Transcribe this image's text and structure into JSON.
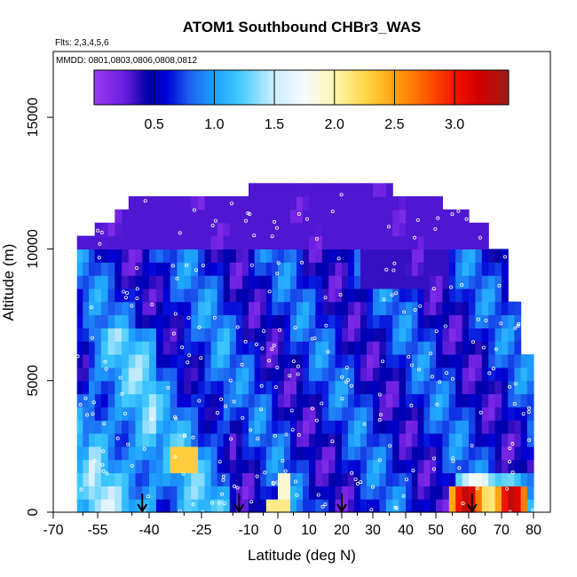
{
  "chart_data": {
    "type": "heatmap",
    "title": "ATOM1 Southbound CHBr3_WAS",
    "subtitle_flights": "Flts: 2,3,4,5,6",
    "subtitle_dates": "MMDD: 0801,0803,0806,0808,0812",
    "xlabel": "Latitude (deg N)",
    "ylabel": "Altitude (m)",
    "xlim": [
      -70,
      85
    ],
    "ylim": [
      0,
      17500
    ],
    "x_ticks": [
      -70,
      -55,
      -40,
      -25,
      -10,
      0,
      10,
      20,
      30,
      40,
      50,
      60,
      70,
      80
    ],
    "x_tick_labels": [
      "-70",
      "-55",
      "-40",
      "-25",
      "-10",
      "0",
      "10",
      "20",
      "30",
      "40",
      "50",
      "60",
      "70",
      "80"
    ],
    "x_minor_ticks": [
      -60,
      -45,
      -30,
      -15,
      -5,
      5,
      15,
      25,
      35,
      45,
      55,
      65,
      75
    ],
    "y_ticks": [
      0,
      5000,
      10000,
      15000
    ],
    "y_tick_labels": [
      "0",
      "5000",
      "10000",
      "15000"
    ],
    "colorbar": {
      "range": [
        0,
        3.45
      ],
      "ticks": [
        0.5,
        1.0,
        1.5,
        2.0,
        2.5,
        3.0
      ],
      "tick_labels": [
        "0.5",
        "1.0",
        "1.5",
        "2.0",
        "2.5",
        "3.0"
      ],
      "placement": "top-inside"
    },
    "profile_markers_lat": [
      -42,
      -13,
      20,
      61
    ],
    "grid": false
  }
}
